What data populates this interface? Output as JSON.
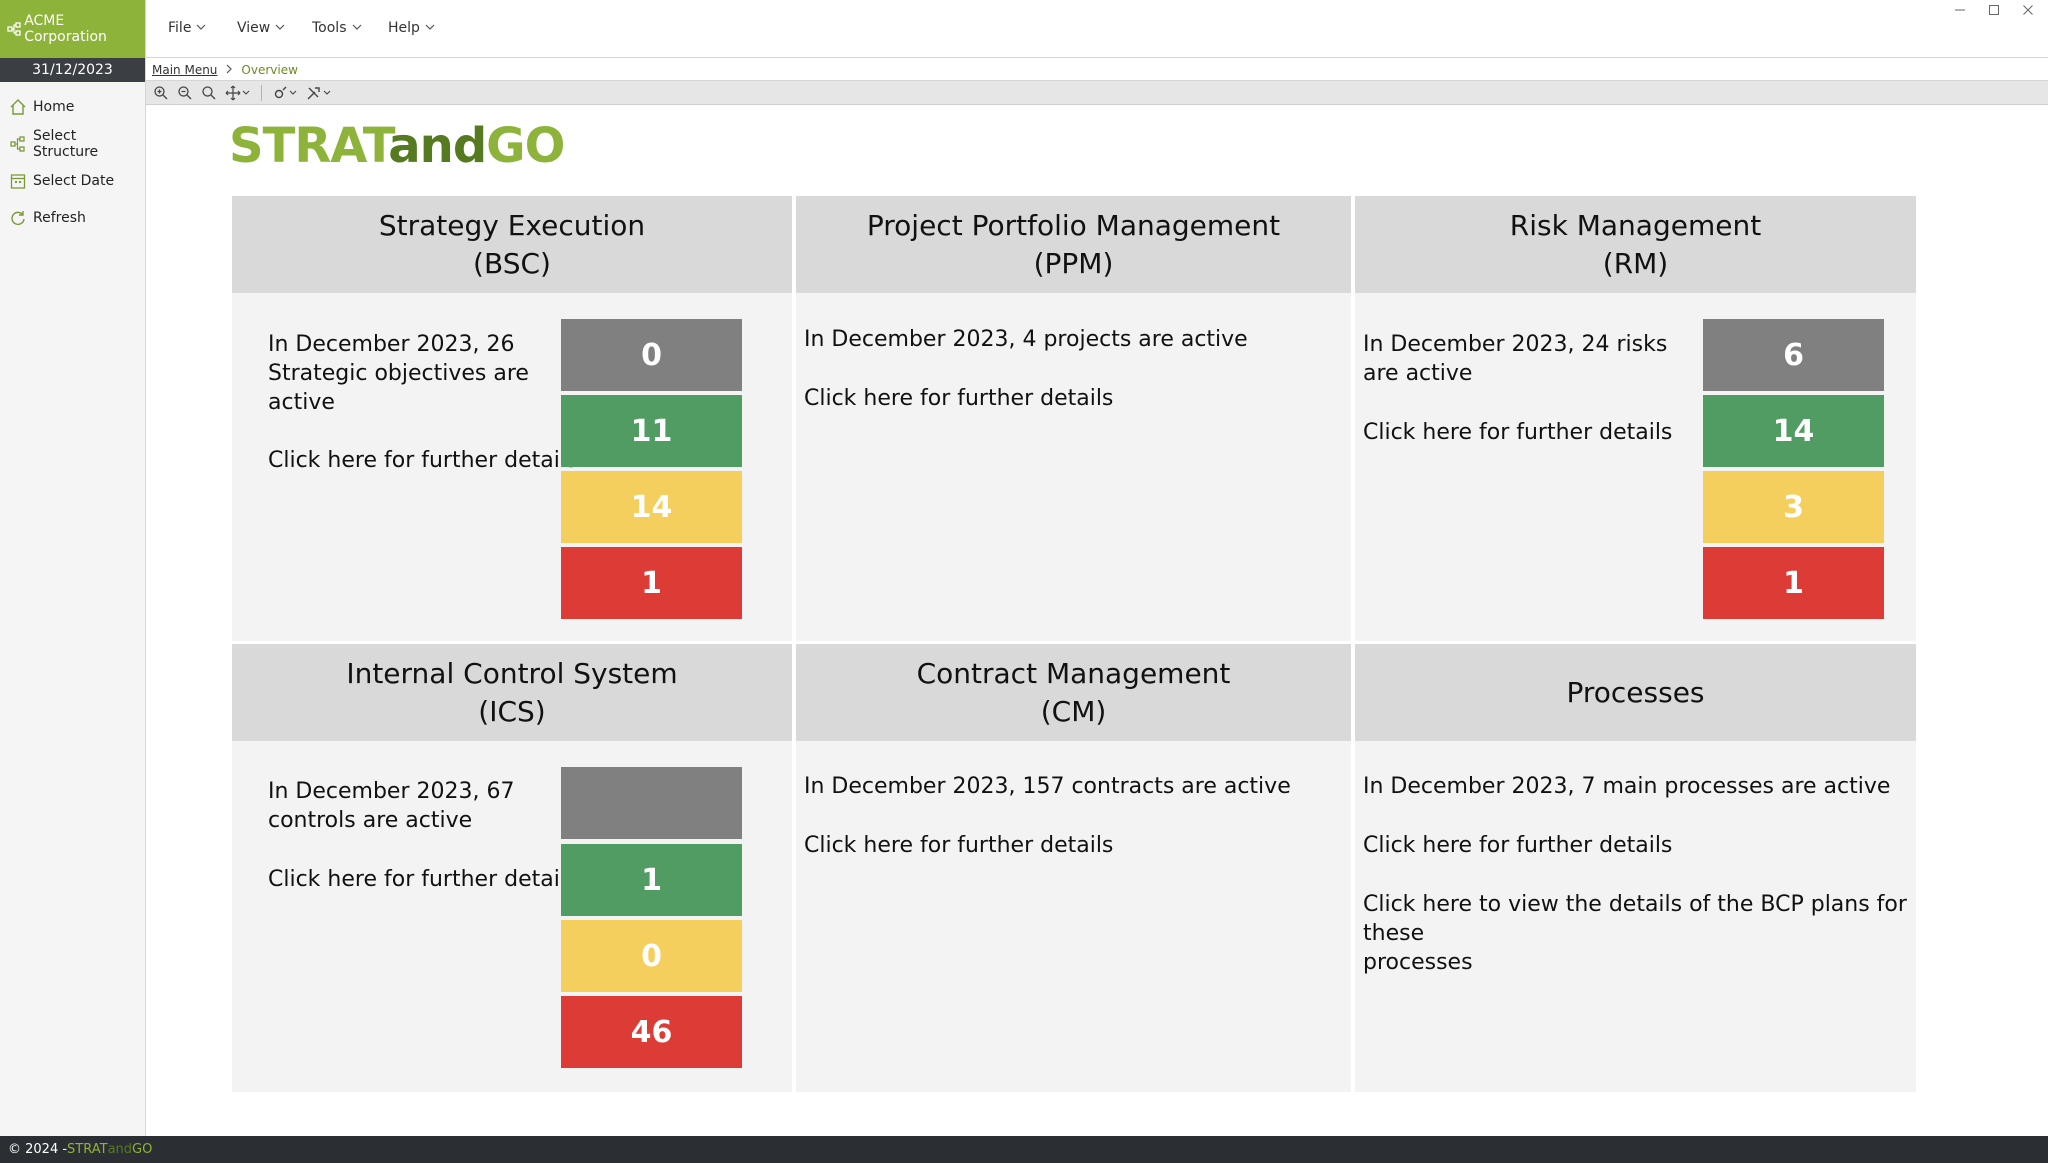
{
  "app": {
    "company": "ACME Corporation",
    "date": "31/12/2023",
    "accent": "#8db33a"
  },
  "sidebar": {
    "items": [
      {
        "label": "Home",
        "icon": "home-icon"
      },
      {
        "label": "Select Structure",
        "icon": "structure-icon"
      },
      {
        "label": "Select Date",
        "icon": "calendar-icon"
      },
      {
        "label": "Refresh",
        "icon": "refresh-icon"
      }
    ]
  },
  "menu": {
    "items": [
      "File",
      "View",
      "Tools",
      "Help"
    ]
  },
  "breadcrumb": {
    "root": "Main Menu",
    "current": "Overview"
  },
  "logo": {
    "part1": "STRAT",
    "part2": "and",
    "part3": "GO"
  },
  "cards": {
    "bsc": {
      "title": "Strategy Execution",
      "subtitle": "(BSC)",
      "line1": "In December 2023, 26",
      "line2": "Strategic objectives are",
      "line3": "active",
      "link": "Click here for further details",
      "counts": {
        "grey": "0",
        "green": "11",
        "yellow": "14",
        "red": "1"
      }
    },
    "ppm": {
      "title": "Project Portfolio Management",
      "subtitle": "(PPM)",
      "line1": "In December 2023, 4 projects are active",
      "link": "Click here for further details"
    },
    "rm": {
      "title": "Risk Management",
      "subtitle": "(RM)",
      "line1": "In December 2023, 24 risks",
      "line2": "are active",
      "link": "Click here for further details",
      "counts": {
        "grey": "6",
        "green": "14",
        "yellow": "3",
        "red": "1"
      }
    },
    "ics": {
      "title": "Internal Control System",
      "subtitle": "(ICS)",
      "line1": "In December 2023, 67",
      "line2": "controls are active",
      "link": "Click here for further details",
      "counts": {
        "grey": "",
        "green": "1",
        "yellow": "0",
        "red": "46"
      }
    },
    "cm": {
      "title": "Contract Management",
      "subtitle": "(CM)",
      "line1": "In December 2023, 157 contracts are active",
      "link": "Click here for further details"
    },
    "proc": {
      "title": "Processes",
      "line1": "In December 2023, 7 main processes are active",
      "link": "Click here for further details",
      "link2a": "Click here to view the details of the BCP plans for these",
      "link2b": "processes"
    }
  },
  "footer": {
    "prefix": "© 2024 - ",
    "p1": "STRAT",
    "p2": "and",
    "p3": "GO"
  }
}
